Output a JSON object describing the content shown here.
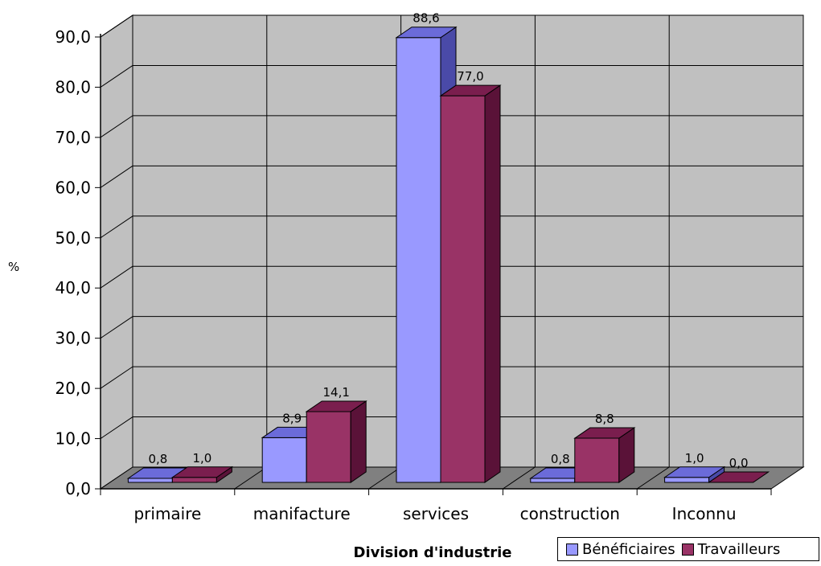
{
  "chart_data": {
    "type": "bar",
    "xlabel": "Division d'industrie",
    "ylabel": "%",
    "ylim": [
      0,
      90
    ],
    "yticks": [
      "0,0",
      "10,0",
      "20,0",
      "30,0",
      "40,0",
      "50,0",
      "60,0",
      "70,0",
      "80,0",
      "90,0"
    ],
    "categories": [
      "primaire",
      "manifacture",
      "services",
      "construction",
      "Inconnu"
    ],
    "series": [
      {
        "name": "Bénéficiaires",
        "values": [
          0.8,
          8.9,
          88.6,
          0.8,
          1.0
        ],
        "labels": [
          "0,8",
          "8,9",
          "88,6",
          "0,8",
          "1,0"
        ],
        "color": "#9999ff"
      },
      {
        "name": "Travailleurs",
        "values": [
          1.0,
          14.1,
          77.0,
          8.8,
          0.0
        ],
        "labels": [
          "1,0",
          "14,1",
          "77,0",
          "8,8",
          "0,0"
        ],
        "color": "#993366"
      }
    ],
    "grid": true,
    "legend_position": "bottom-right"
  },
  "colors": {
    "plot_back": "#c0c0c0",
    "floor": "#808080",
    "series1_top": "#6b6bd9",
    "series1_side": "#4a4aa8",
    "series2_top": "#7a1e4e",
    "series2_side": "#5a1238"
  }
}
